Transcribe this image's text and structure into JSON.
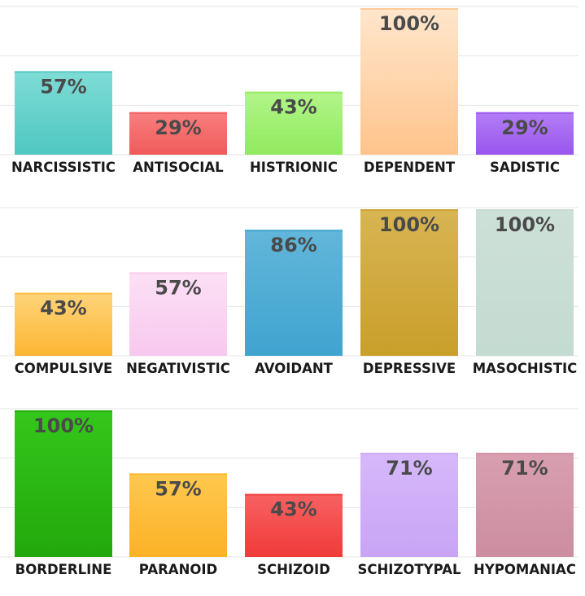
{
  "chart_data": [
    {
      "type": "bar",
      "categories": [
        "NARCISSISTIC",
        "ANTISOCIAL",
        "HISTRIONIC",
        "DEPENDENT",
        "SADISTIC"
      ],
      "values": [
        57,
        29,
        43,
        100,
        29
      ],
      "value_labels": [
        "57%",
        "29%",
        "43%",
        "100%",
        "29%"
      ],
      "colors": [
        [
          "#7fdcd6",
          "#4fc7c1"
        ],
        [
          "#f97f7f",
          "#ef5a5a"
        ],
        [
          "#b2f58a",
          "#90ea5e"
        ],
        [
          "#ffe6cc",
          "#ffc48c"
        ],
        [
          "#b27ef5",
          "#9a55ee"
        ]
      ],
      "ylim": [
        0,
        100
      ],
      "grid": true
    },
    {
      "type": "bar",
      "categories": [
        "COMPULSIVE",
        "NEGATIVISTIC",
        "AVOIDANT",
        "DEPRESSIVE",
        "MASOCHISTIC"
      ],
      "values": [
        43,
        57,
        86,
        100,
        100
      ],
      "value_labels": [
        "43%",
        "57%",
        "86%",
        "100%",
        "100%"
      ],
      "colors": [
        [
          "#ffd47a",
          "#fbb632"
        ],
        [
          "#fce0f5",
          "#f8c8ee"
        ],
        [
          "#62b6da",
          "#3fa4cf"
        ],
        [
          "#d8b453",
          "#c99f2a"
        ],
        [
          "#cde0d8",
          "#c4dbd1"
        ]
      ],
      "ylim": [
        0,
        100
      ],
      "grid": true
    },
    {
      "type": "bar",
      "categories": [
        "BORDERLINE",
        "PARANOID",
        "SCHIZOID",
        "SCHIZOTYPAL",
        "HYPOMANIAC"
      ],
      "values": [
        100,
        57,
        43,
        71,
        71
      ],
      "value_labels": [
        "100%",
        "57%",
        "43%",
        "71%",
        "71%"
      ],
      "colors": [
        [
          "#34c71a",
          "#23a80c"
        ],
        [
          "#ffc84f",
          "#fbb226"
        ],
        [
          "#f86262",
          "#f03a3a"
        ],
        [
          "#d6b8fa",
          "#c9a4f5"
        ],
        [
          "#d89fb0",
          "#cc8da0"
        ]
      ],
      "ylim": [
        0,
        100
      ],
      "grid": true
    }
  ]
}
